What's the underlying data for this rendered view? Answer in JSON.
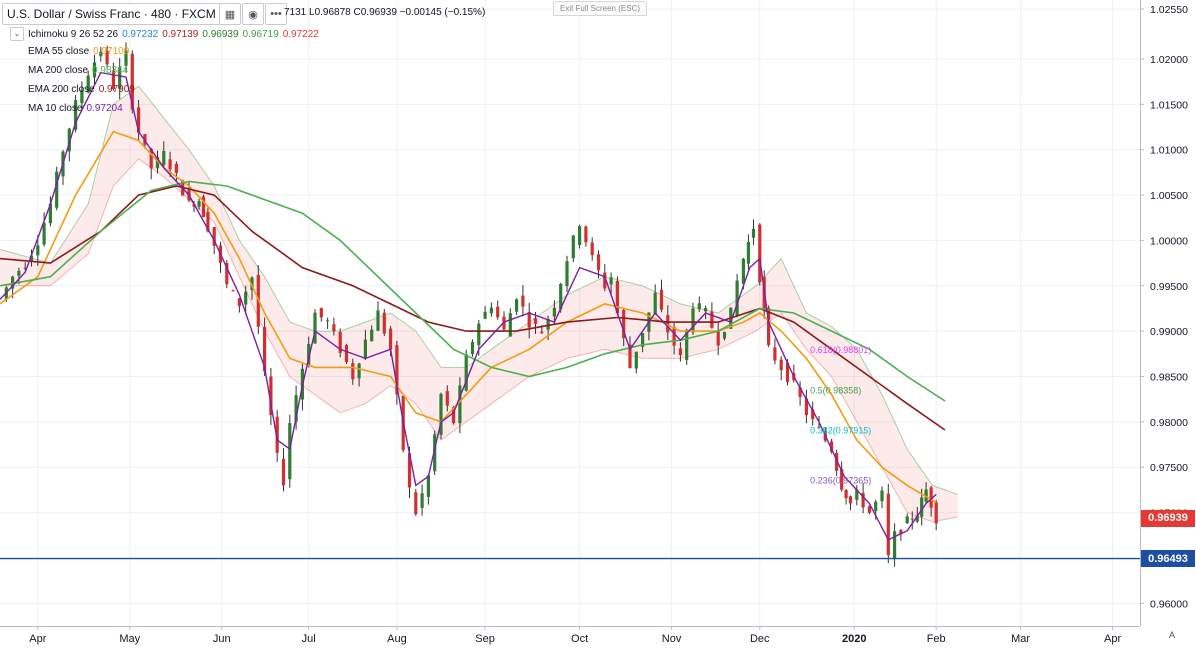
{
  "header": {
    "symbol": "U.S. Dollar / Swiss Franc · 480 · FXCM",
    "ohlc_text": "7131  L0.96878  C0.96939  −0.00145 (−0.15%)",
    "exit_fullscreen": "Exit Full Screen (ESC)",
    "auto_label": "A"
  },
  "indicators": [
    {
      "name": "Ichimoku 9 26 52 26",
      "values": [
        "0.97232",
        "0.97139",
        "0.96939",
        "0.96719",
        "0.97222"
      ],
      "colors": [
        "#1e88e5",
        "#b71c1c",
        "#2e7d32",
        "#43a047",
        "#e53935"
      ]
    },
    {
      "name": "EMA 55 close",
      "value": "0.97109",
      "color": "#f39c12"
    },
    {
      "name": "MA 200 close",
      "value": "0.98344",
      "color": "#4caf50"
    },
    {
      "name": "EMA 200 close",
      "value": "0.97909",
      "color": "#8b1a1a"
    },
    {
      "name": "MA 10 close",
      "value": "0.97204",
      "color": "#7b1fa2"
    }
  ],
  "price_tags": [
    {
      "label": "0.96939",
      "value": 0.96939,
      "color": "#e53935"
    },
    {
      "label": "0.96493",
      "value": 0.96493,
      "color": "#1e4ea1"
    }
  ],
  "horizontal_line": {
    "value": 0.96493,
    "color": "#1e4ea1"
  },
  "fib_labels": [
    {
      "text": "0.618(0.98801)",
      "value": 0.98801,
      "color": "#e040fb"
    },
    {
      "text": "0.5(0.98358)",
      "value": 0.98358,
      "color": "#43a047"
    },
    {
      "text": "0.382(0.97915)",
      "value": 0.97915,
      "color": "#00bcd4"
    },
    {
      "text": "0.236(0.97365)",
      "value": 0.97365,
      "color": "#7e57c2"
    }
  ],
  "chart_data": {
    "type": "candlestick",
    "title": "U.S. Dollar / Swiss Franc · 480 · FXCM",
    "ylim": [
      0.9575,
      1.0265
    ],
    "y_ticks": [
      "1.02550",
      "1.02000",
      "1.01500",
      "1.01000",
      "1.00500",
      "1.00000",
      "0.99500",
      "0.99000",
      "0.98500",
      "0.98000",
      "0.97500",
      "0.97000",
      "0.96500",
      "0.96000"
    ],
    "x_ticks": [
      "Apr",
      "May",
      "Jun",
      "Jul",
      "Aug",
      "Sep",
      "Oct",
      "Nov",
      "Dec",
      "2020",
      "Feb",
      "Mar",
      "Apr"
    ],
    "x_tick_index": [
      3,
      10.3,
      17.6,
      24.5,
      31.5,
      38.5,
      46,
      53.3,
      60.3,
      67.8,
      74.3,
      81,
      88.3
    ],
    "last_data_index": 74.3,
    "series": [
      {
        "name": "Price (close)",
        "color": "#26a69a",
        "points": [
          [
            0,
            0.9935
          ],
          [
            1,
            0.996
          ],
          [
            2,
            0.9975
          ],
          [
            3,
            1.0
          ],
          [
            4,
            1.004
          ],
          [
            5,
            1.01
          ],
          [
            6,
            1.015
          ],
          [
            7,
            1.0185
          ],
          [
            8,
            1.021
          ],
          [
            9,
            1.017
          ],
          [
            10,
            1.0205
          ],
          [
            10.5,
            1.015
          ],
          [
            11,
            1.012
          ],
          [
            12,
            1.008
          ],
          [
            13,
            1.0095
          ],
          [
            14,
            1.007
          ],
          [
            15,
            1.004
          ],
          [
            15.8,
            1.0045
          ],
          [
            16.5,
            1.0015
          ],
          [
            17,
            0.9995
          ],
          [
            18,
            0.995
          ],
          [
            19,
            0.993
          ],
          [
            20,
            0.996
          ],
          [
            21,
            0.985
          ],
          [
            22,
            0.976
          ],
          [
            22.5,
            0.9735
          ],
          [
            23,
            0.98
          ],
          [
            24,
            0.986
          ],
          [
            25,
            0.992
          ],
          [
            26,
            0.991
          ],
          [
            27,
            0.988
          ],
          [
            28,
            0.985
          ],
          [
            29,
            0.989
          ],
          [
            30,
            0.992
          ],
          [
            31,
            0.988
          ],
          [
            32,
            0.977
          ],
          [
            32.5,
            0.9725
          ],
          [
            33,
            0.97
          ],
          [
            34,
            0.974
          ],
          [
            35,
            0.983
          ],
          [
            36,
            0.98
          ],
          [
            37,
            0.987
          ],
          [
            38,
            0.991
          ],
          [
            39,
            0.993
          ],
          [
            40,
            0.99
          ],
          [
            41,
            0.994
          ],
          [
            42,
            0.991
          ],
          [
            43,
            0.99
          ],
          [
            44,
            0.993
          ],
          [
            45,
            0.998
          ],
          [
            46,
            1.002
          ],
          [
            47,
            0.998
          ],
          [
            48,
            0.995
          ],
          [
            48.5,
            0.996
          ],
          [
            49,
            0.992
          ],
          [
            50,
            0.986
          ],
          [
            51,
            0.99
          ],
          [
            52,
            0.994
          ],
          [
            53,
            0.99
          ],
          [
            54,
            0.987
          ],
          [
            55,
            0.993
          ],
          [
            56,
            0.992
          ],
          [
            57,
            0.989
          ],
          [
            58,
            0.992
          ],
          [
            58.5,
            0.9955
          ],
          [
            59,
            0.998
          ],
          [
            59.8,
            1.0015
          ],
          [
            60.3,
            0.996
          ],
          [
            61,
            0.988
          ],
          [
            62,
            0.986
          ],
          [
            63,
            0.984
          ],
          [
            64,
            0.981
          ],
          [
            65,
            0.979
          ],
          [
            66,
            0.977
          ],
          [
            66.8,
            0.973
          ],
          [
            67.5,
            0.971
          ],
          [
            68,
            0.972
          ],
          [
            69,
            0.97
          ],
          [
            70,
            0.972
          ],
          [
            70.5,
            0.965
          ],
          [
            71,
            0.9675
          ],
          [
            72,
            0.969
          ],
          [
            72.8,
            0.97
          ],
          [
            73.5,
            0.9725
          ],
          [
            74.3,
            0.9694
          ]
        ]
      },
      {
        "name": "EMA 55 close",
        "color": "#f39c12",
        "points": [
          [
            0,
            0.993
          ],
          [
            3,
            0.996
          ],
          [
            6,
            1.005
          ],
          [
            9,
            1.012
          ],
          [
            11,
            1.011
          ],
          [
            13,
            1.008
          ],
          [
            15,
            1.006
          ],
          [
            17,
            1.003
          ],
          [
            19,
            0.998
          ],
          [
            21,
            0.992
          ],
          [
            23,
            0.987
          ],
          [
            25,
            0.986
          ],
          [
            28,
            0.986
          ],
          [
            31,
            0.985
          ],
          [
            33,
            0.981
          ],
          [
            35,
            0.98
          ],
          [
            37,
            0.983
          ],
          [
            39,
            0.986
          ],
          [
            42,
            0.988
          ],
          [
            45,
            0.991
          ],
          [
            48,
            0.993
          ],
          [
            51,
            0.992
          ],
          [
            54,
            0.99
          ],
          [
            57,
            0.99
          ],
          [
            59,
            0.991
          ],
          [
            60.3,
            0.992
          ],
          [
            62,
            0.99
          ],
          [
            64,
            0.987
          ],
          [
            66,
            0.983
          ],
          [
            68,
            0.978
          ],
          [
            70,
            0.975
          ],
          [
            72,
            0.973
          ],
          [
            74.3,
            0.9711
          ]
        ]
      },
      {
        "name": "EMA 200 close",
        "color": "#8b1a1a",
        "points": [
          [
            0,
            0.998
          ],
          [
            4,
            0.9975
          ],
          [
            8,
            1.001
          ],
          [
            11,
            1.005
          ],
          [
            14,
            1.006
          ],
          [
            17,
            1.005
          ],
          [
            20,
            1.001
          ],
          [
            24,
            0.997
          ],
          [
            28,
            0.995
          ],
          [
            31,
            0.993
          ],
          [
            34,
            0.991
          ],
          [
            37,
            0.99
          ],
          [
            41,
            0.99
          ],
          [
            45,
            0.991
          ],
          [
            49,
            0.9915
          ],
          [
            53,
            0.991
          ],
          [
            57,
            0.991
          ],
          [
            60.3,
            0.9925
          ],
          [
            63,
            0.991
          ],
          [
            66,
            0.988
          ],
          [
            69,
            0.985
          ],
          [
            72,
            0.982
          ],
          [
            75,
            0.9791
          ]
        ]
      },
      {
        "name": "MA 200 close",
        "color": "#4caf50",
        "points": [
          [
            0,
            0.995
          ],
          [
            4,
            0.996
          ],
          [
            8,
            1.001
          ],
          [
            12,
            1.0055
          ],
          [
            15,
            1.0065
          ],
          [
            18,
            1.006
          ],
          [
            21,
            1.0045
          ],
          [
            24,
            1.003
          ],
          [
            27,
            1.0
          ],
          [
            30,
            0.996
          ],
          [
            33,
            0.992
          ],
          [
            36,
            0.988
          ],
          [
            39,
            0.986
          ],
          [
            42,
            0.985
          ],
          [
            45,
            0.986
          ],
          [
            48,
            0.9875
          ],
          [
            51,
            0.9885
          ],
          [
            54,
            0.989
          ],
          [
            57,
            0.99
          ],
          [
            60.3,
            0.9925
          ],
          [
            63,
            0.992
          ],
          [
            66,
            0.99
          ],
          [
            69,
            0.988
          ],
          [
            72,
            0.985
          ],
          [
            75,
            0.9823
          ]
        ]
      },
      {
        "name": "MA 10 close",
        "color": "#7b1fa2",
        "points": [
          [
            0,
            0.9935
          ],
          [
            2,
            0.9965
          ],
          [
            4,
            1.004
          ],
          [
            6,
            1.013
          ],
          [
            8,
            1.0185
          ],
          [
            10,
            1.018
          ],
          [
            11,
            1.012
          ],
          [
            13,
            1.008
          ],
          [
            15,
            1.005
          ],
          [
            17,
            1.0
          ],
          [
            19,
            0.994
          ],
          [
            21,
            0.986
          ],
          [
            22,
            0.978
          ],
          [
            23,
            0.977
          ],
          [
            24,
            0.984
          ],
          [
            25,
            0.99
          ],
          [
            27,
            0.988
          ],
          [
            29,
            0.987
          ],
          [
            31,
            0.988
          ],
          [
            32,
            0.98
          ],
          [
            33,
            0.973
          ],
          [
            34,
            0.974
          ],
          [
            35,
            0.98
          ],
          [
            36,
            0.981
          ],
          [
            38,
            0.988
          ],
          [
            40,
            0.991
          ],
          [
            42,
            0.992
          ],
          [
            44,
            0.991
          ],
          [
            46,
            0.997
          ],
          [
            48,
            0.996
          ],
          [
            50,
            0.988
          ],
          [
            52,
            0.992
          ],
          [
            54,
            0.989
          ],
          [
            56,
            0.992
          ],
          [
            58,
            0.991
          ],
          [
            59.5,
            0.997
          ],
          [
            60.3,
            0.998
          ],
          [
            61,
            0.991
          ],
          [
            63,
            0.985
          ],
          [
            65,
            0.98
          ],
          [
            67,
            0.974
          ],
          [
            69,
            0.971
          ],
          [
            70.5,
            0.967
          ],
          [
            72,
            0.968
          ],
          [
            73.5,
            0.971
          ],
          [
            74.3,
            0.972
          ]
        ]
      }
    ],
    "cloud": {
      "upper": [
        [
          0,
          0.999
        ],
        [
          4,
          0.9975
        ],
        [
          7,
          1.004
        ],
        [
          9,
          1.015
        ],
        [
          11,
          1.017
        ],
        [
          13,
          1.0135
        ],
        [
          15,
          1.01
        ],
        [
          17,
          1.006
        ],
        [
          19,
          1.0
        ],
        [
          21,
          0.996
        ],
        [
          23,
          0.991
        ],
        [
          25,
          0.99
        ],
        [
          27,
          0.99
        ],
        [
          29,
          0.991
        ],
        [
          31,
          0.992
        ],
        [
          33,
          0.99
        ],
        [
          35,
          0.986
        ],
        [
          37,
          0.986
        ],
        [
          39,
          0.988
        ],
        [
          42,
          0.991
        ],
        [
          45,
          0.994
        ],
        [
          48,
          0.996
        ],
        [
          51,
          0.995
        ],
        [
          54,
          0.993
        ],
        [
          57,
          0.992
        ],
        [
          60,
          0.995
        ],
        [
          62,
          0.998
        ],
        [
          64,
          0.992
        ],
        [
          66,
          0.9905
        ],
        [
          68,
          0.988
        ],
        [
          70,
          0.983
        ],
        [
          72,
          0.977
        ],
        [
          74,
          0.973
        ],
        [
          76,
          0.972
        ]
      ],
      "lower": [
        [
          0,
          0.995
        ],
        [
          4,
          0.995
        ],
        [
          7,
          0.9985
        ],
        [
          9,
          1.006
        ],
        [
          11,
          1.009
        ],
        [
          13,
          1.007
        ],
        [
          15,
          1.0045
        ],
        [
          17,
          1.002
        ],
        [
          19,
          0.996
        ],
        [
          21,
          0.99
        ],
        [
          23,
          0.985
        ],
        [
          25,
          0.983
        ],
        [
          27,
          0.981
        ],
        [
          29,
          0.982
        ],
        [
          31,
          0.984
        ],
        [
          33,
          0.982
        ],
        [
          35,
          0.978
        ],
        [
          37,
          0.98
        ],
        [
          39,
          0.982
        ],
        [
          42,
          0.985
        ],
        [
          45,
          0.987
        ],
        [
          48,
          0.988
        ],
        [
          51,
          0.987
        ],
        [
          54,
          0.987
        ],
        [
          57,
          0.988
        ],
        [
          60,
          0.99
        ],
        [
          62,
          0.992
        ],
        [
          64,
          0.988
        ],
        [
          66,
          0.985
        ],
        [
          68,
          0.98
        ],
        [
          70,
          0.975
        ],
        [
          72,
          0.97
        ],
        [
          74,
          0.969
        ],
        [
          76,
          0.9695
        ]
      ]
    }
  }
}
